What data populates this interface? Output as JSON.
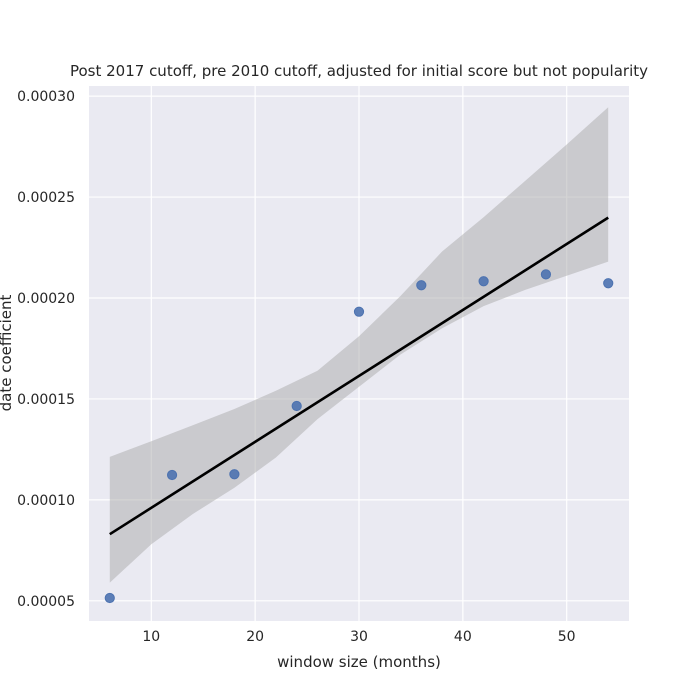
{
  "chart_data": {
    "type": "scatter",
    "title": "Post 2017 cutoff, pre 2010 cutoff, adjusted for initial score but not popularity",
    "xlabel": "window size (months)",
    "ylabel": "date coefficient",
    "xlim": [
      4,
      56
    ],
    "ylim": [
      4e-05,
      0.000305
    ],
    "grid": true,
    "x_ticks": [
      10,
      20,
      30,
      40,
      50
    ],
    "x_tick_labels": [
      "10",
      "20",
      "30",
      "40",
      "50"
    ],
    "y_ticks": [
      5e-05,
      0.0001,
      0.00015,
      0.0002,
      0.00025,
      0.0003
    ],
    "y_tick_labels": [
      "0.00005",
      "0.00010",
      "0.00015",
      "0.00020",
      "0.00025",
      "0.00030"
    ],
    "points": {
      "x": [
        6,
        12,
        18,
        24,
        30,
        36,
        42,
        48,
        54
      ],
      "y": [
        5.14e-05,
        0.0001123,
        0.0001127,
        0.0001465,
        0.0001932,
        0.0002063,
        0.0002083,
        0.0002117,
        0.0002073
      ]
    },
    "regression": {
      "x": [
        6,
        54
      ],
      "y": [
        8.3e-05,
        0.0002398
      ]
    },
    "confidence_band": {
      "x": [
        6,
        10,
        14,
        18,
        22,
        26,
        30,
        34,
        38,
        42,
        46,
        50,
        54
      ],
      "upper": [
        0.0001213,
        0.000129,
        0.000137,
        0.000145,
        0.000154,
        0.000164,
        0.000181,
        0.000201,
        0.000223,
        0.00024,
        0.000258,
        0.000276,
        0.0002945
      ],
      "lower": [
        5.9e-05,
        7.8e-05,
        9.3e-05,
        0.000106,
        0.000121,
        0.00014,
        0.000156,
        0.000172,
        0.000185,
        0.000196,
        0.000204,
        0.000211,
        0.000218
      ]
    },
    "colors": {
      "background": "#eaeaf2",
      "grid": "#ffffff",
      "points": "#4c72b0",
      "line": "#000000",
      "band": "#aaaaaa"
    }
  }
}
